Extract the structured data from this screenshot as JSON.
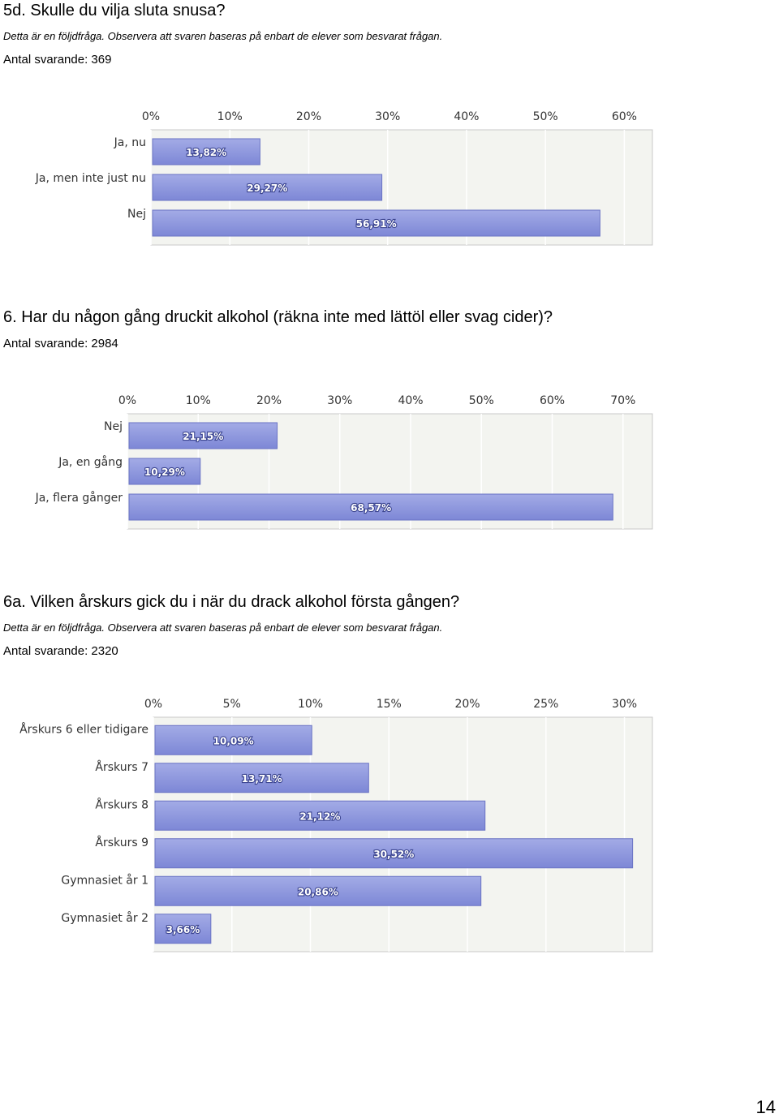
{
  "questions": [
    {
      "title": "5d. Skulle du vilja sluta snusa?",
      "note": "Detta är en följdfråga. Observera att svaren baseras på enbart de elever som besvarat frågan.",
      "count": "Antal svarande: 369"
    },
    {
      "title": "6. Har du någon gång druckit alkohol (räkna inte med lättöl eller svag cider)?",
      "note": "",
      "count": "Antal svarande: 2984"
    },
    {
      "title": "6a. Vilken årskurs gick du i när du drack alkohol första gången?",
      "note": "Detta är en följdfråga. Observera att svaren baseras på enbart de elever som besvarat frågan.",
      "count": "Antal svarande: 2320"
    }
  ],
  "page_number": "14",
  "colors": {
    "bar_fill_top": "#a3abe6",
    "bar_fill_bottom": "#7d87d6",
    "bar_stroke": "#6a73c4",
    "plot_bg": "#f3f4f0",
    "grid_line": "#ffffff",
    "axis_text": "#333333"
  },
  "chart_data": [
    {
      "type": "bar",
      "orientation": "horizontal",
      "categories": [
        "Ja, nu",
        "Ja, men inte just nu",
        "Nej"
      ],
      "values": [
        13.82,
        29.27,
        56.91
      ],
      "value_labels": [
        "13,82%",
        "29,27%",
        "56,91%"
      ],
      "xlim": [
        0,
        60
      ],
      "xticks": [
        0,
        10,
        20,
        30,
        40,
        50,
        60
      ],
      "xtick_labels": [
        "0%",
        "10%",
        "20%",
        "30%",
        "40%",
        "50%",
        "60%"
      ],
      "grid": true
    },
    {
      "type": "bar",
      "orientation": "horizontal",
      "categories": [
        "Nej",
        "Ja, en gång",
        "Ja, flera gånger"
      ],
      "values": [
        21.15,
        10.29,
        68.57
      ],
      "value_labels": [
        "21,15%",
        "10,29%",
        "68,57%"
      ],
      "xlim": [
        0,
        70
      ],
      "xticks": [
        0,
        10,
        20,
        30,
        40,
        50,
        60,
        70
      ],
      "xtick_labels": [
        "0%",
        "10%",
        "20%",
        "30%",
        "40%",
        "50%",
        "60%",
        "70%"
      ],
      "grid": true
    },
    {
      "type": "bar",
      "orientation": "horizontal",
      "categories": [
        "Årskurs 6 eller tidigare",
        "Årskurs 7",
        "Årskurs 8",
        "Årskurs 9",
        "Gymnasiet år 1",
        "Gymnasiet år 2"
      ],
      "values": [
        10.09,
        13.71,
        21.12,
        30.52,
        20.86,
        3.66
      ],
      "value_labels": [
        "10,09%",
        "13,71%",
        "21,12%",
        "30,52%",
        "20,86%",
        "3,66%"
      ],
      "xlim": [
        0,
        30
      ],
      "xticks": [
        0,
        5,
        10,
        15,
        20,
        25,
        30
      ],
      "xtick_labels": [
        "0%",
        "5%",
        "10%",
        "15%",
        "20%",
        "25%",
        "30%"
      ],
      "grid": true
    }
  ]
}
